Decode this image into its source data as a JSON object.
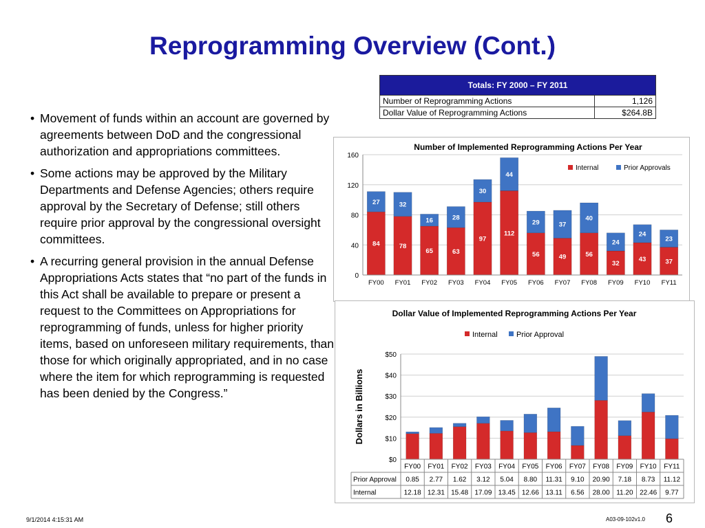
{
  "title": "Reprogramming Overview (Cont.)",
  "totals": {
    "header": "Totals: FY 2000 – FY 2011",
    "rows": [
      {
        "label": "Number of Reprogramming Actions",
        "value": "1,126"
      },
      {
        "label": "Dollar Value of Reprogramming Actions",
        "value": "$264.8B"
      }
    ]
  },
  "bullets": [
    "Movement of funds within an account are governed by agreements between DoD and the congressional authorization and appropriations committees.",
    "Some actions may be approved by the Military Departments and Defense Agencies; others require approval by the Secretary of Defense; still others require prior approval by the congressional oversight committees.",
    "A recurring general provision in the annual Defense Appropriations Acts states that “no part of the funds in this Act shall be available to prepare or present a request to the Committees on Appropriations for reprogramming of funds, unless for higher priority items, based on unforeseen military requirements, than those for which originally appropriated, and in no case where the item for which reprogramming is requested has been denied by the Congress.”"
  ],
  "chart_data": [
    {
      "type": "bar",
      "stacked": true,
      "title": "Number of Implemented Reprogramming Actions Per Year",
      "xlabel": "",
      "ylabel": "",
      "categories": [
        "FY00",
        "FY01",
        "FY02",
        "FY03",
        "FY04",
        "FY05",
        "FY06",
        "FY07",
        "FY08",
        "FY09",
        "FY10",
        "FY11"
      ],
      "series": [
        {
          "name": "Internal",
          "color": "#d42a2a",
          "values": [
            84,
            78,
            65,
            63,
            97,
            112,
            56,
            49,
            56,
            32,
            43,
            37
          ]
        },
        {
          "name": "Prior Approvals",
          "color": "#3f74c4",
          "values": [
            27,
            32,
            16,
            28,
            30,
            44,
            29,
            37,
            40,
            24,
            24,
            23
          ]
        }
      ],
      "ylim": [
        0,
        160
      ],
      "yticks": [
        "0",
        "40",
        "80",
        "120",
        "160"
      ],
      "yticks_values": [
        0,
        40,
        80,
        120,
        160
      ],
      "data_labels": true,
      "legend": "top-right"
    },
    {
      "type": "bar",
      "stacked": true,
      "title": "Dollar Value  of Implemented Reprogramming Actions Per Year",
      "xlabel": "",
      "ylabel": "Dollars in Billions",
      "categories": [
        "FY00",
        "FY01",
        "FY02",
        "FY03",
        "FY04",
        "FY05",
        "FY06",
        "FY07",
        "FY08",
        "FY09",
        "FY10",
        "FY11"
      ],
      "series": [
        {
          "name": "Internal",
          "color": "#d42a2a",
          "values": [
            12.18,
            12.31,
            15.48,
            17.09,
            13.45,
            12.66,
            13.11,
            6.56,
            28.0,
            11.2,
            22.46,
            9.77
          ],
          "labels": [
            "12.18",
            "12.31",
            "15.48",
            "17.09",
            "13.45",
            "12.66",
            "13.11",
            "6.56",
            "28.00",
            "11.20",
            "22.46",
            "9.77"
          ]
        },
        {
          "name": "Prior Approval",
          "color": "#3f74c4",
          "values": [
            0.85,
            2.77,
            1.62,
            3.12,
            5.04,
            8.8,
            11.31,
            9.1,
            20.9,
            7.18,
            8.73,
            11.12
          ],
          "labels": [
            "0.85",
            "2.77",
            "1.62",
            "3.12",
            "5.04",
            "8.80",
            "11.31",
            "9.10",
            "20.90",
            "7.18",
            "8.73",
            "11.12"
          ]
        }
      ],
      "ylim": [
        0,
        50
      ],
      "yticks": [
        "$0",
        "$10",
        "$20",
        "$30",
        "$40",
        "$50"
      ],
      "yticks_values": [
        0,
        10,
        20,
        30,
        40,
        50
      ],
      "data_table": true,
      "table_rows": [
        "Prior Approval",
        "Internal"
      ],
      "legend": "top"
    }
  ],
  "footer": {
    "date": "9/1/2014 4:15:31 AM",
    "docid": "A03-09-102v1.0",
    "page": "6"
  }
}
